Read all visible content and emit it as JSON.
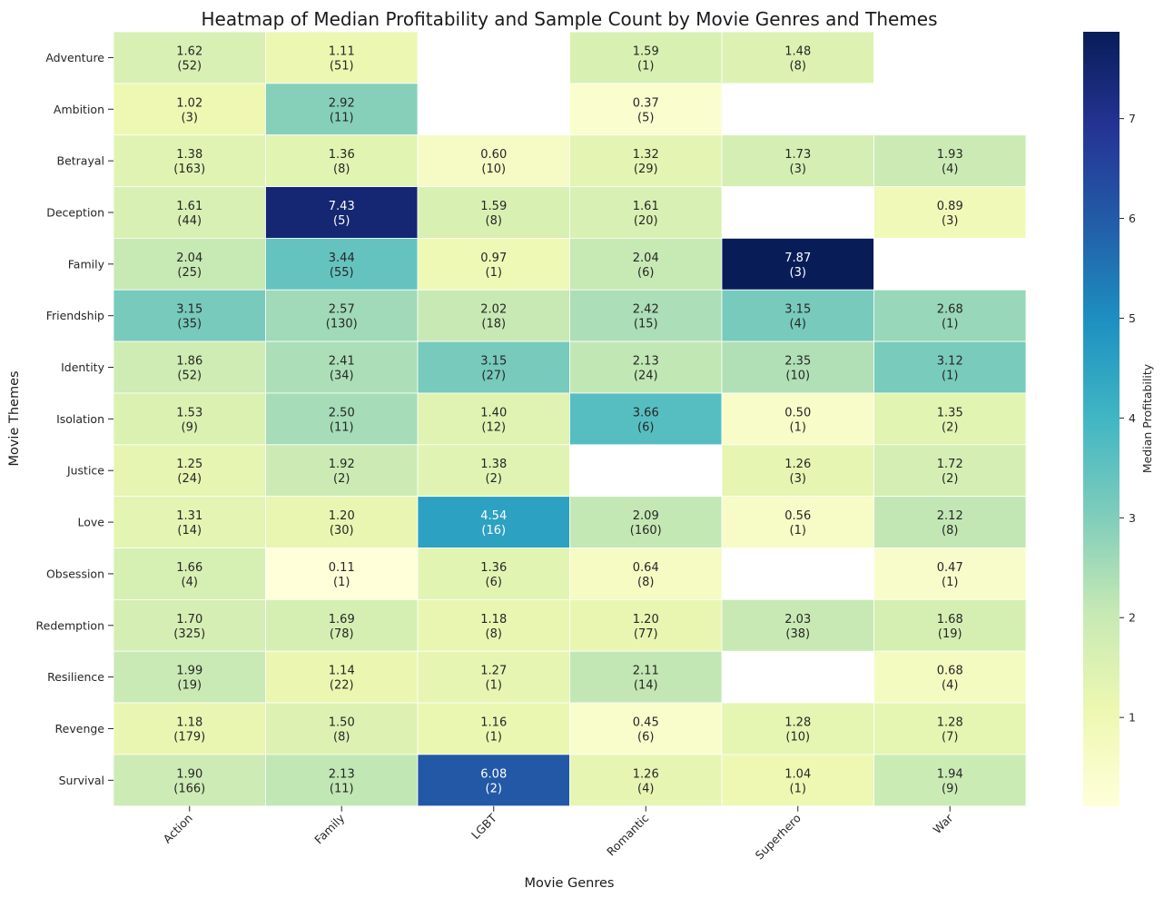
{
  "chart_data": {
    "type": "heatmap",
    "title": "Heatmap of Median Profitability and Sample Count by Movie Genres and Themes",
    "xlabel": "Movie Genres",
    "ylabel": "Movie Themes",
    "colorbar_label": "Median Profitability",
    "colorbar_ticks": [
      1,
      2,
      3,
      4,
      5,
      6,
      7
    ],
    "value_range": [
      0.11,
      7.87
    ],
    "colormap": "YlGnBu",
    "x_categories": [
      "Action",
      "Family",
      "LGBT",
      "Romantic",
      "Superhero",
      "War"
    ],
    "y_categories": [
      "Adventure",
      "Ambition",
      "Betrayal",
      "Deception",
      "Family",
      "Friendship",
      "Identity",
      "Isolation",
      "Justice",
      "Love",
      "Obsession",
      "Redemption",
      "Resilience",
      "Revenge",
      "Survival"
    ],
    "values": [
      [
        1.62,
        1.11,
        null,
        1.59,
        1.48,
        null
      ],
      [
        1.02,
        2.92,
        null,
        0.37,
        null,
        null
      ],
      [
        1.38,
        1.36,
        0.6,
        1.32,
        1.73,
        1.93
      ],
      [
        1.61,
        7.43,
        1.59,
        1.61,
        null,
        0.89
      ],
      [
        2.04,
        3.44,
        0.97,
        2.04,
        7.87,
        null
      ],
      [
        3.15,
        2.57,
        2.02,
        2.42,
        3.15,
        2.68
      ],
      [
        1.86,
        2.41,
        3.15,
        2.13,
        2.35,
        3.12
      ],
      [
        1.53,
        2.5,
        1.4,
        3.66,
        0.5,
        1.35
      ],
      [
        1.25,
        1.92,
        1.38,
        null,
        1.26,
        1.72
      ],
      [
        1.31,
        1.2,
        4.54,
        2.09,
        0.56,
        2.12
      ],
      [
        1.66,
        0.11,
        1.36,
        0.64,
        null,
        0.47
      ],
      [
        1.7,
        1.69,
        1.18,
        1.2,
        2.03,
        1.68
      ],
      [
        1.99,
        1.14,
        1.27,
        2.11,
        null,
        0.68
      ],
      [
        1.18,
        1.5,
        1.16,
        0.45,
        1.28,
        1.28
      ],
      [
        1.9,
        2.13,
        6.08,
        1.26,
        1.04,
        1.94
      ]
    ],
    "counts": [
      [
        52,
        51,
        null,
        1,
        8,
        null
      ],
      [
        3,
        11,
        null,
        5,
        null,
        null
      ],
      [
        163,
        8,
        10,
        29,
        3,
        4
      ],
      [
        44,
        5,
        8,
        20,
        null,
        3
      ],
      [
        25,
        55,
        1,
        6,
        3,
        null
      ],
      [
        35,
        130,
        18,
        15,
        4,
        1
      ],
      [
        52,
        34,
        27,
        24,
        10,
        1
      ],
      [
        9,
        11,
        12,
        6,
        1,
        2
      ],
      [
        24,
        2,
        2,
        null,
        3,
        2
      ],
      [
        14,
        30,
        16,
        160,
        1,
        8
      ],
      [
        4,
        1,
        6,
        8,
        null,
        1
      ],
      [
        325,
        78,
        8,
        77,
        38,
        19
      ],
      [
        19,
        22,
        1,
        14,
        null,
        4
      ],
      [
        179,
        8,
        1,
        6,
        10,
        7
      ],
      [
        166,
        11,
        2,
        4,
        1,
        9
      ]
    ]
  }
}
